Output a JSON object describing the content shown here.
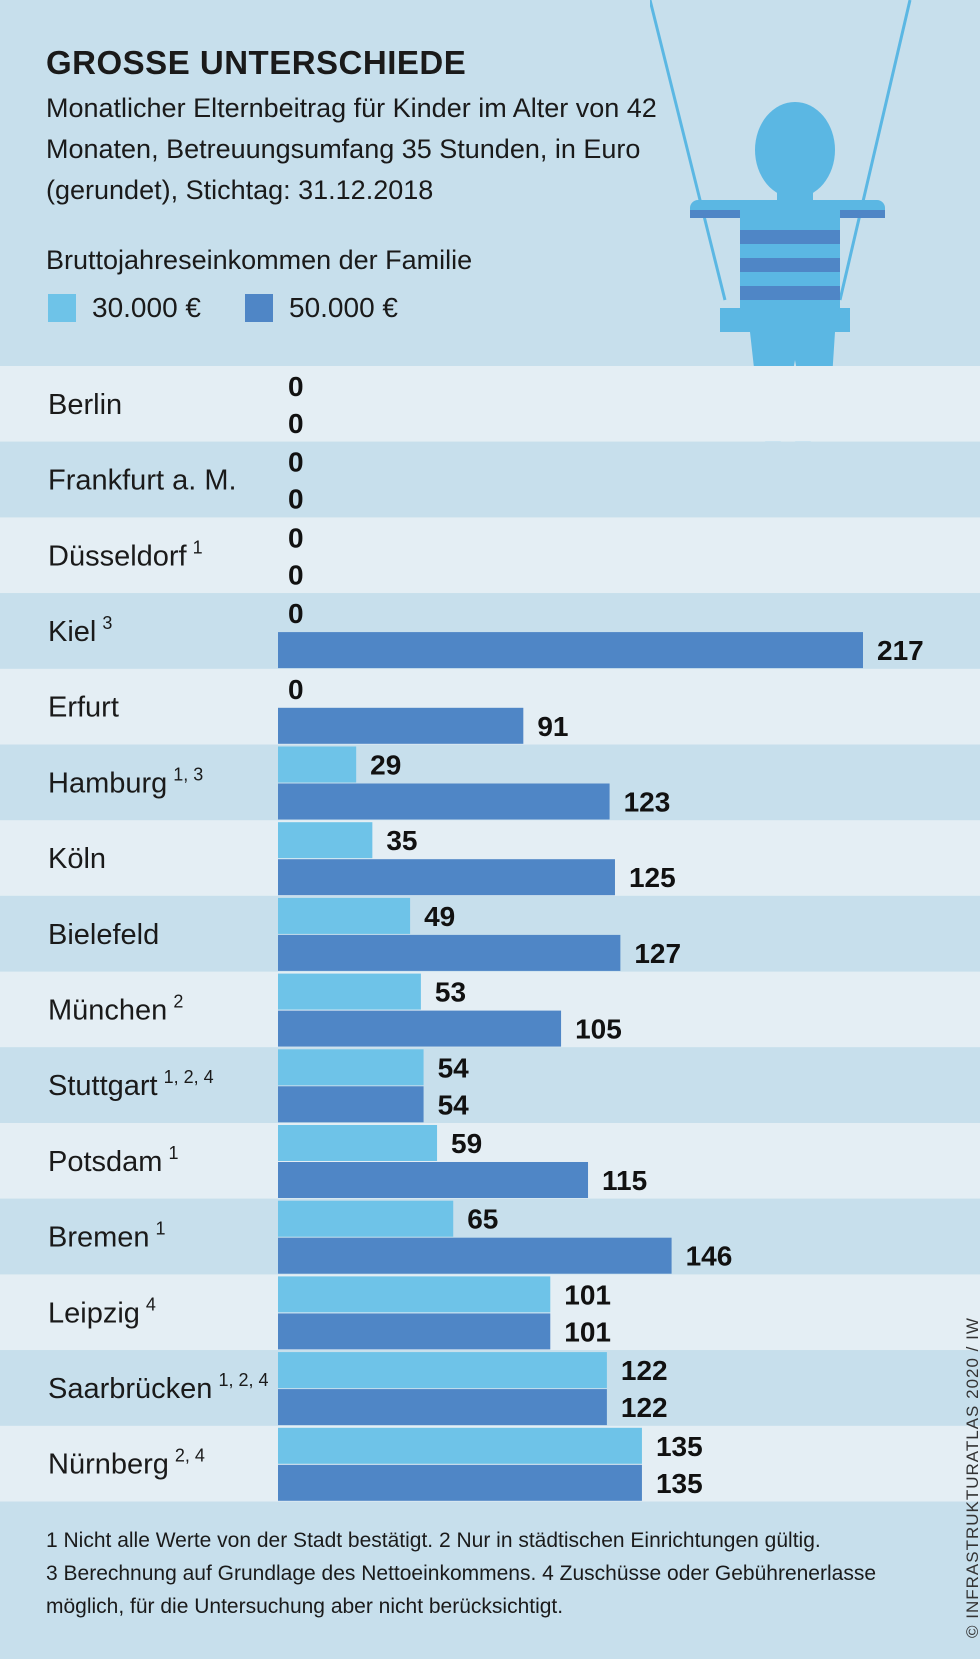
{
  "title": "GROSSE UNTERSCHIEDE",
  "subtitle": "Monatlicher Elternbeitrag für Kinder im Alter von 42 Monaten, Betreuungsumfang 35 Stunden, in Euro (gerundet), Stichtag: 31.12.2018",
  "legend_title": "Bruttojahreseinkommen der Familie",
  "legend": [
    {
      "label": "30.000 €",
      "color": "#6ec3e8"
    },
    {
      "label": "50.000 €",
      "color": "#4f86c6"
    }
  ],
  "footnotes": [
    "1 Nicht alle Werte von der Stadt bestätigt. 2 Nur in städtischen Einrichtungen gültig.",
    "3 Berechnung auf Grundlage des Nettoeinkommens. 4 Zuschüsse oder Gebührenerlasse",
    "möglich, für die Untersuchung aber nicht berücksichtigt."
  ],
  "credit": "© INFRASTRUKTURATLAS 2020 / IW",
  "chart_data": {
    "type": "bar",
    "orientation": "horizontal",
    "categories": [
      "Berlin",
      "Frankfurt a. M.",
      "Düsseldorf",
      "Kiel",
      "Erfurt",
      "Hamburg",
      "Köln",
      "Bielefeld",
      "München",
      "Stuttgart",
      "Potsdam",
      "Bremen",
      "Leipzig",
      "Saarbrücken",
      "Nürnberg"
    ],
    "footnote_marks": [
      "",
      "",
      "1",
      "3",
      "",
      "1, 3",
      "",
      "",
      "2",
      "1, 2, 4",
      "1",
      "1",
      "4",
      "1, 2, 4",
      "2, 4"
    ],
    "series": [
      {
        "name": "30.000 €",
        "color": "#6ec3e8",
        "values": [
          0,
          0,
          0,
          0,
          0,
          29,
          35,
          49,
          53,
          54,
          59,
          65,
          101,
          122,
          135
        ]
      },
      {
        "name": "50.000 €",
        "color": "#4f86c6",
        "values": [
          0,
          0,
          0,
          217,
          91,
          123,
          125,
          127,
          105,
          54,
          115,
          146,
          101,
          122,
          135
        ]
      }
    ],
    "xlim": [
      0,
      217
    ],
    "row_colors": [
      "#e4eef4",
      "#c7dfec"
    ]
  }
}
